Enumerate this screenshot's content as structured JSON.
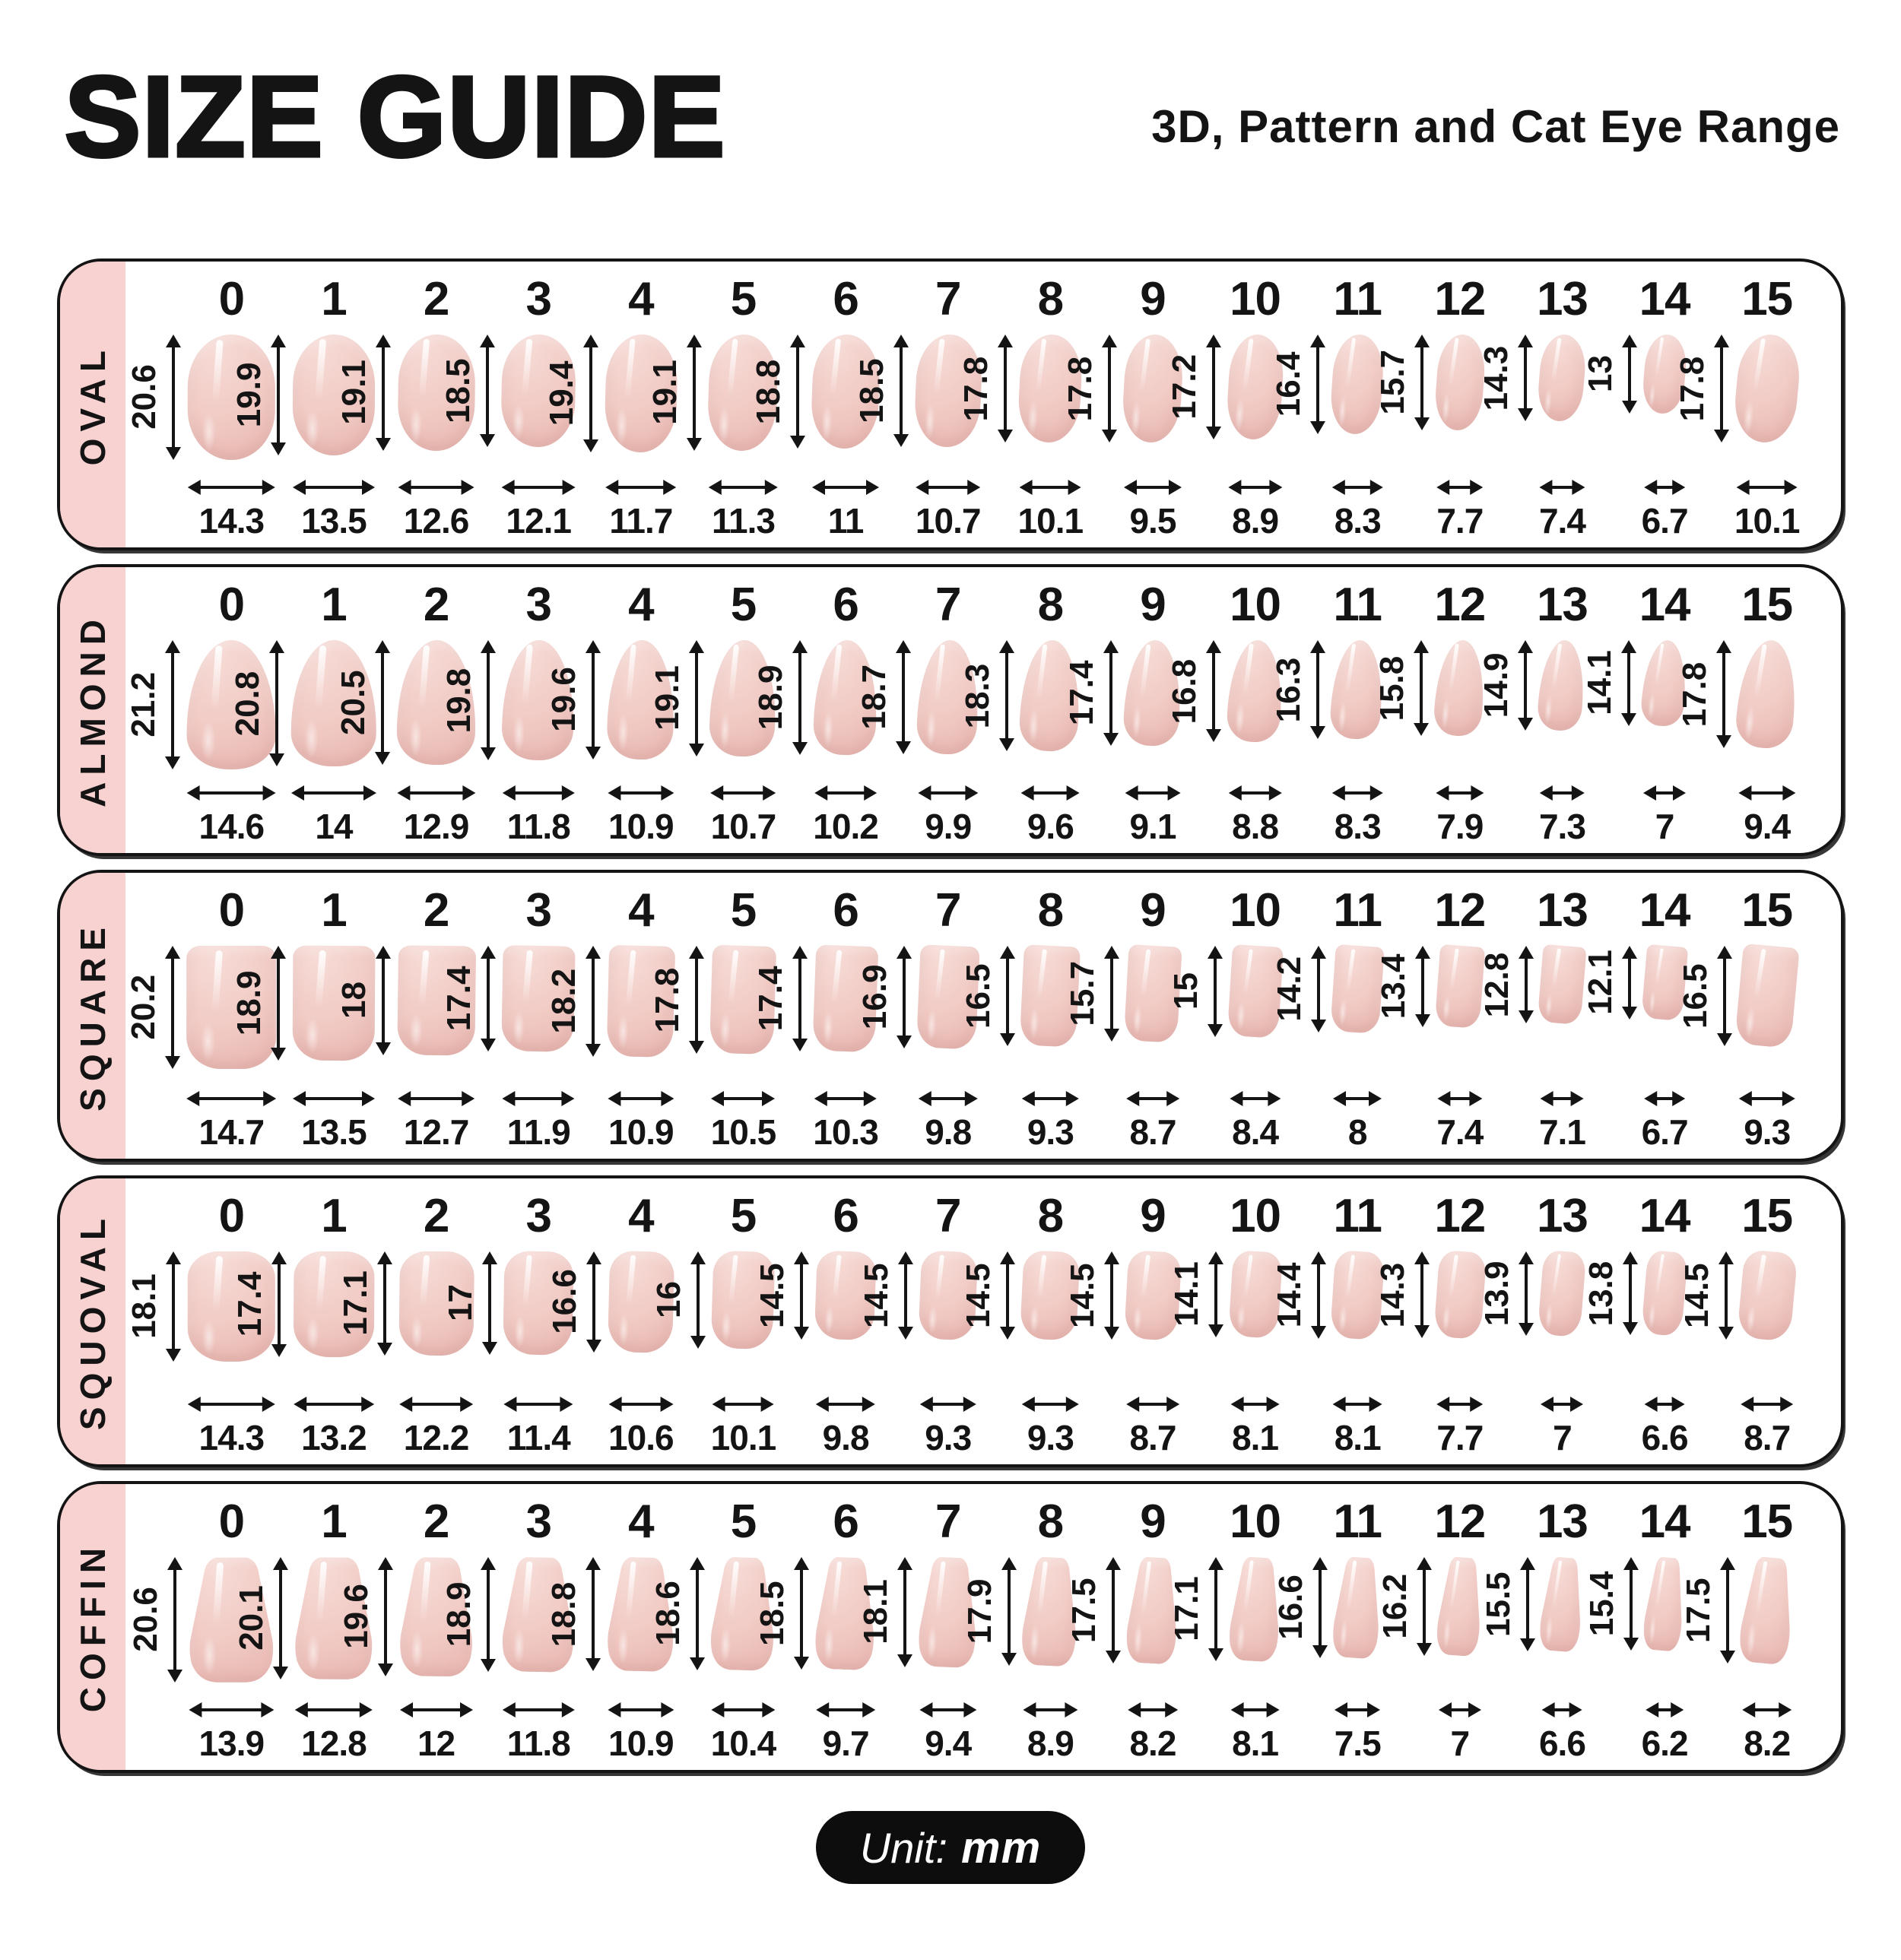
{
  "header": {
    "title": "SIZE GUIDE",
    "subtitle": "3D, Pattern and Cat Eye Range"
  },
  "footer": {
    "unit_label": "Unit:",
    "unit_value": "mm"
  },
  "colors": {
    "band_pink": "#f8d2d1",
    "nail_light": "#f7dcd7",
    "nail_mid": "#f1cac4",
    "nail_dark": "#e5b0aa",
    "border": "#141414",
    "text": "#141414",
    "badge_bg": "#0d0d0d",
    "badge_text": "#ffffff",
    "background": "#ffffff"
  },
  "chart_data": {
    "type": "table",
    "title": "SIZE GUIDE",
    "subtitle": "3D, Pattern and Cat Eye Range",
    "unit": "mm",
    "measures_per_size": [
      "length",
      "width"
    ],
    "sizes": [
      0,
      1,
      2,
      3,
      4,
      5,
      6,
      7,
      8,
      9,
      10,
      11,
      12,
      13,
      14,
      15
    ],
    "rows": [
      {
        "shape": "OVAL",
        "lengths": [
          20.6,
          19.9,
          19.1,
          18.5,
          19.4,
          19.1,
          18.8,
          18.5,
          17.8,
          17.8,
          17.2,
          16.4,
          15.7,
          14.3,
          13,
          17.8
        ],
        "widths": [
          14.3,
          13.5,
          12.6,
          12.1,
          11.7,
          11.3,
          11,
          10.7,
          10.1,
          9.5,
          8.9,
          8.3,
          7.7,
          7.4,
          6.7,
          10.1
        ]
      },
      {
        "shape": "ALMOND",
        "lengths": [
          21.2,
          20.8,
          20.5,
          19.8,
          19.6,
          19.1,
          18.9,
          18.7,
          18.3,
          17.4,
          16.8,
          16.3,
          15.8,
          14.9,
          14.1,
          17.8
        ],
        "widths": [
          14.6,
          14,
          12.9,
          11.8,
          10.9,
          10.7,
          10.2,
          9.9,
          9.6,
          9.1,
          8.8,
          8.3,
          7.9,
          7.3,
          7,
          9.4
        ]
      },
      {
        "shape": "SQUARE",
        "lengths": [
          20.2,
          18.9,
          18,
          17.4,
          18.2,
          17.8,
          17.4,
          16.9,
          16.5,
          15.7,
          15,
          14.2,
          13.4,
          12.8,
          12.1,
          16.5
        ],
        "widths": [
          14.7,
          13.5,
          12.7,
          11.9,
          10.9,
          10.5,
          10.3,
          9.8,
          9.3,
          8.7,
          8.4,
          8,
          7.4,
          7.1,
          6.7,
          9.3
        ]
      },
      {
        "shape": "SQUOVAL",
        "lengths": [
          18.1,
          17.4,
          17.1,
          17,
          16.6,
          16,
          14.5,
          14.5,
          14.5,
          14.5,
          14.1,
          14.4,
          14.3,
          13.9,
          13.8,
          14.5
        ],
        "widths": [
          14.3,
          13.2,
          12.2,
          11.4,
          10.6,
          10.1,
          9.8,
          9.3,
          9.3,
          8.7,
          8.1,
          8.1,
          7.7,
          7,
          6.6,
          8.7
        ]
      },
      {
        "shape": "COFFIN",
        "lengths": [
          20.6,
          20.1,
          19.6,
          18.9,
          18.8,
          18.6,
          18.5,
          18.1,
          17.9,
          17.5,
          17.1,
          16.6,
          16.2,
          15.5,
          15.4,
          17.5
        ],
        "widths": [
          13.9,
          12.8,
          12,
          11.8,
          10.9,
          10.4,
          9.7,
          9.4,
          8.9,
          8.2,
          8.1,
          7.5,
          7,
          6.6,
          6.2,
          8.2
        ]
      }
    ]
  }
}
